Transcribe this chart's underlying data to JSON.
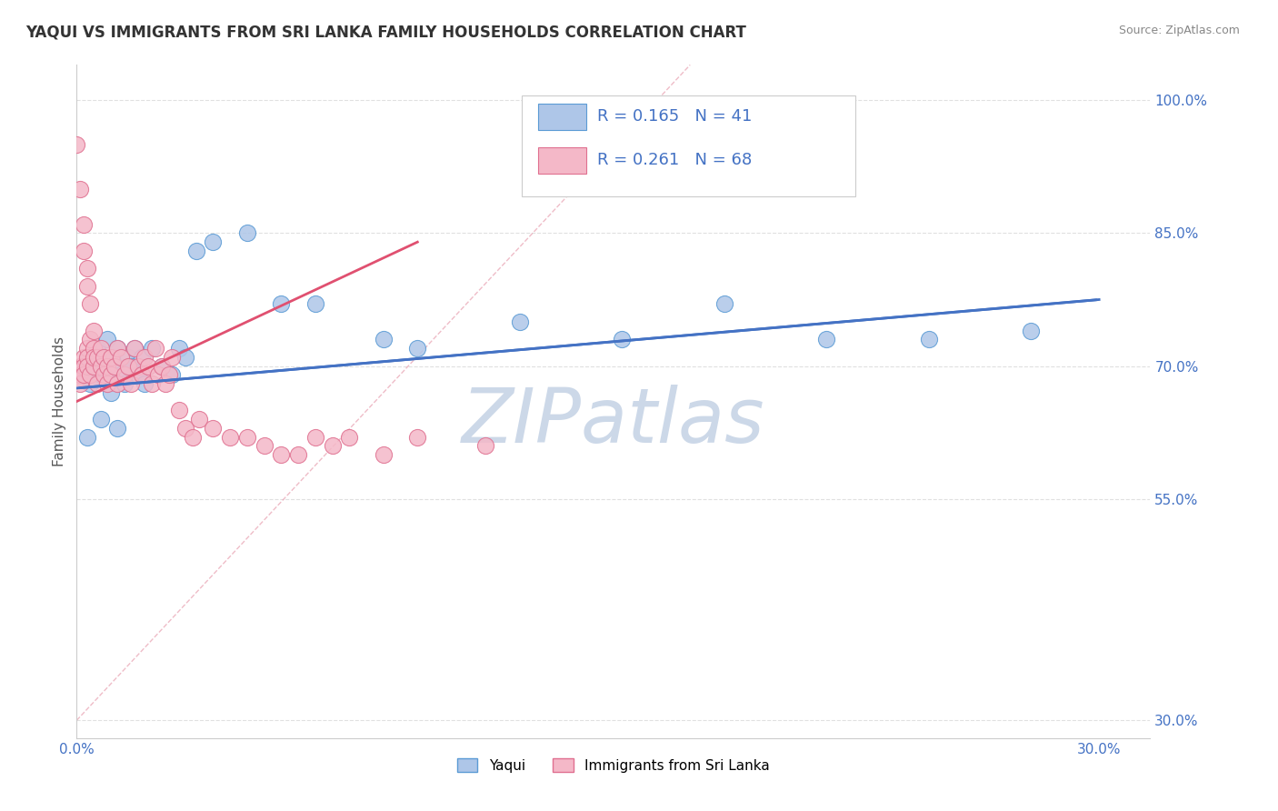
{
  "title": "YAQUI VS IMMIGRANTS FROM SRI LANKA FAMILY HOUSEHOLDS CORRELATION CHART",
  "source_text": "Source: ZipAtlas.com",
  "ylabel": "Family Households",
  "watermark": "ZIPatlas",
  "xlim": [
    0.0,
    0.315
  ],
  "ylim": [
    0.28,
    1.04
  ],
  "ytick_vals": [
    0.3,
    0.55,
    0.7,
    0.85,
    1.0
  ],
  "ytick_labels": [
    "30.0%",
    "55.0%",
    "70.0%",
    "85.0%",
    "100.0%"
  ],
  "xtick_vals": [
    0.0,
    0.3
  ],
  "xtick_labels": [
    "0.0%",
    "30.0%"
  ],
  "series": [
    {
      "name": "Yaqui",
      "color": "#aec6e8",
      "edge_color": "#5b9bd5",
      "trend_color": "#4472c4",
      "R": 0.165,
      "N": 41,
      "x": [
        0.001,
        0.002,
        0.003,
        0.004,
        0.005,
        0.006,
        0.007,
        0.008,
        0.009,
        0.01,
        0.011,
        0.012,
        0.013,
        0.014,
        0.015,
        0.016,
        0.017,
        0.018,
        0.019,
        0.02,
        0.022,
        0.025,
        0.028,
        0.03,
        0.032,
        0.035,
        0.04,
        0.05,
        0.06,
        0.07,
        0.09,
        0.1,
        0.13,
        0.16,
        0.19,
        0.22,
        0.25,
        0.28,
        0.003,
        0.007,
        0.012
      ],
      "y": [
        0.685,
        0.695,
        0.71,
        0.68,
        0.7,
        0.72,
        0.69,
        0.71,
        0.73,
        0.67,
        0.7,
        0.72,
        0.69,
        0.68,
        0.71,
        0.7,
        0.72,
        0.69,
        0.71,
        0.68,
        0.72,
        0.7,
        0.69,
        0.72,
        0.71,
        0.83,
        0.84,
        0.85,
        0.77,
        0.77,
        0.73,
        0.72,
        0.75,
        0.73,
        0.77,
        0.73,
        0.73,
        0.74,
        0.62,
        0.64,
        0.63
      ]
    },
    {
      "name": "Immigrants from Sri Lanka",
      "color": "#f4b8c8",
      "edge_color": "#e07090",
      "trend_color": "#e05070",
      "R": 0.261,
      "N": 68,
      "x": [
        0.0,
        0.001,
        0.001,
        0.001,
        0.002,
        0.002,
        0.002,
        0.003,
        0.003,
        0.003,
        0.004,
        0.004,
        0.005,
        0.005,
        0.005,
        0.006,
        0.006,
        0.007,
        0.007,
        0.008,
        0.008,
        0.009,
        0.009,
        0.01,
        0.01,
        0.011,
        0.012,
        0.012,
        0.013,
        0.014,
        0.015,
        0.016,
        0.017,
        0.018,
        0.019,
        0.02,
        0.021,
        0.022,
        0.023,
        0.024,
        0.025,
        0.026,
        0.027,
        0.028,
        0.03,
        0.032,
        0.034,
        0.036,
        0.04,
        0.045,
        0.05,
        0.055,
        0.06,
        0.065,
        0.07,
        0.075,
        0.08,
        0.09,
        0.1,
        0.12,
        0.0,
        0.001,
        0.002,
        0.002,
        0.003,
        0.003,
        0.004,
        0.005
      ],
      "y": [
        0.685,
        0.7,
        0.69,
        0.68,
        0.71,
        0.7,
        0.69,
        0.72,
        0.71,
        0.7,
        0.73,
        0.69,
        0.72,
        0.7,
        0.71,
        0.68,
        0.71,
        0.72,
        0.7,
        0.69,
        0.71,
        0.7,
        0.68,
        0.69,
        0.71,
        0.7,
        0.72,
        0.68,
        0.71,
        0.69,
        0.7,
        0.68,
        0.72,
        0.7,
        0.69,
        0.71,
        0.7,
        0.68,
        0.72,
        0.69,
        0.7,
        0.68,
        0.69,
        0.71,
        0.65,
        0.63,
        0.62,
        0.64,
        0.63,
        0.62,
        0.62,
        0.61,
        0.6,
        0.6,
        0.62,
        0.61,
        0.62,
        0.6,
        0.62,
        0.61,
        0.95,
        0.9,
        0.86,
        0.83,
        0.81,
        0.79,
        0.77,
        0.74
      ]
    }
  ],
  "diagonal_color": "#e8a0b0",
  "grid_color": "#e0e0e0",
  "background_color": "#ffffff",
  "title_fontsize": 12,
  "axis_label_fontsize": 11,
  "tick_fontsize": 11,
  "watermark_color": "#ccd8e8",
  "watermark_fontsize": 60,
  "legend_R_color": "#4472c4",
  "legend_label_colors": [
    "#4472c4",
    "#4472c4"
  ]
}
